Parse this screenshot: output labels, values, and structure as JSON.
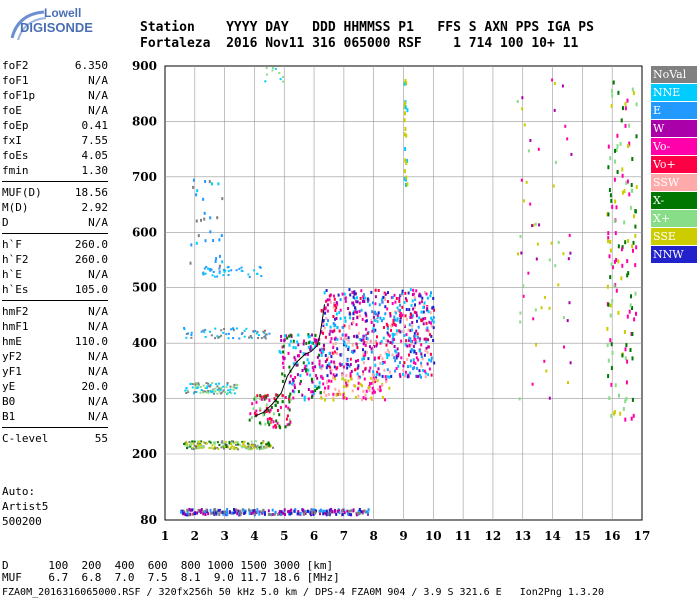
{
  "logo": {
    "line1": "Lowell",
    "line2": "DIGISONDE"
  },
  "header": {
    "line1": "Station    YYYY DAY   DDD HHMMSS P1   FFS S AXN PPS IGA PS",
    "line2": "Fortaleza  2016 Nov11 316 065000 RSF    1 714 100 10+ 11"
  },
  "params": {
    "group1": [
      {
        "label": "foF2",
        "value": "6.350"
      },
      {
        "label": "foF1",
        "value": "N/A"
      },
      {
        "label": "foF1p",
        "value": "N/A"
      },
      {
        "label": "foE",
        "value": "N/A"
      },
      {
        "label": "foEp",
        "value": "0.41"
      },
      {
        "label": "fxI",
        "value": "7.55"
      },
      {
        "label": "foEs",
        "value": "4.05"
      },
      {
        "label": "fmin",
        "value": "1.30"
      }
    ],
    "group2": [
      {
        "label": "MUF(D)",
        "value": "18.56"
      },
      {
        "label": "M(D)",
        "value": "2.92"
      },
      {
        "label": "D",
        "value": "N/A"
      }
    ],
    "group3": [
      {
        "label": "h`F",
        "value": "260.0"
      },
      {
        "label": "h`F2",
        "value": "260.0"
      },
      {
        "label": "h`E",
        "value": "N/A"
      },
      {
        "label": "h`Es",
        "value": "105.0"
      }
    ],
    "group4": [
      {
        "label": "hmF2",
        "value": "N/A"
      },
      {
        "label": "hmF1",
        "value": "N/A"
      },
      {
        "label": "hmE",
        "value": "110.0"
      },
      {
        "label": "yF2",
        "value": "N/A"
      },
      {
        "label": "yF1",
        "value": "N/A"
      },
      {
        "label": "yE",
        "value": "20.0"
      },
      {
        "label": "B0",
        "value": "N/A"
      },
      {
        "label": "B1",
        "value": "N/A"
      }
    ],
    "group5": [
      {
        "label": "C-level",
        "value": "55"
      }
    ]
  },
  "auto": {
    "line1": "Auto:",
    "line2": "Artist5",
    "line3": "500200"
  },
  "chart_data": {
    "type": "scatter",
    "title": "",
    "xlabel": "",
    "ylabel": "",
    "xlim": [
      1,
      17
    ],
    "ylim": [
      80,
      900
    ],
    "x_ticks": [
      "1",
      "2",
      "3",
      "4",
      "5",
      "6",
      "7",
      "8",
      "9",
      "10",
      "11",
      "12",
      "13",
      "14",
      "15",
      "16",
      "17"
    ],
    "y_ticks": [
      "80",
      "200",
      "300",
      "400",
      "500",
      "600",
      "700",
      "800",
      "900"
    ],
    "grid": true,
    "legend_position": "right",
    "legend": [
      {
        "name": "NoVal",
        "color": "#808080"
      },
      {
        "name": "NNE",
        "color": "#00ccff"
      },
      {
        "name": "E",
        "color": "#2299ff"
      },
      {
        "name": "W",
        "color": "#aa00aa"
      },
      {
        "name": "Vo-",
        "color": "#ff00aa"
      },
      {
        "name": "Vo+",
        "color": "#ff0044"
      },
      {
        "name": "SSW",
        "color": "#ffaaaa"
      },
      {
        "name": "X-",
        "color": "#007700"
      },
      {
        "name": "X+",
        "color": "#88dd88"
      },
      {
        "name": "SSE",
        "color": "#cccc00"
      },
      {
        "name": "NNW",
        "color": "#2222cc"
      }
    ],
    "trace": {
      "x": [
        4.0,
        4.3,
        4.6,
        4.9,
        5.1,
        5.4,
        5.7,
        5.9,
        6.1,
        6.2,
        6.3,
        6.35
      ],
      "y": [
        268,
        275,
        290,
        310,
        340,
        365,
        380,
        385,
        395,
        415,
        450,
        470
      ]
    }
  },
  "bottom": {
    "line1": "D      100  200  400  600  800 1000 1500 3000 [km]",
    "line2": "MUF    6.7  6.8  7.0  7.5  8.1  9.0 11.7 18.6 [MHz]"
  },
  "footer": "FZA0M_2016316065000.RSF / 320fx256h 50 kHz 5.0 km / DPS-4 FZA0M 904 / 3.9 S 321.6 E   Ion2Png 1.3.20"
}
